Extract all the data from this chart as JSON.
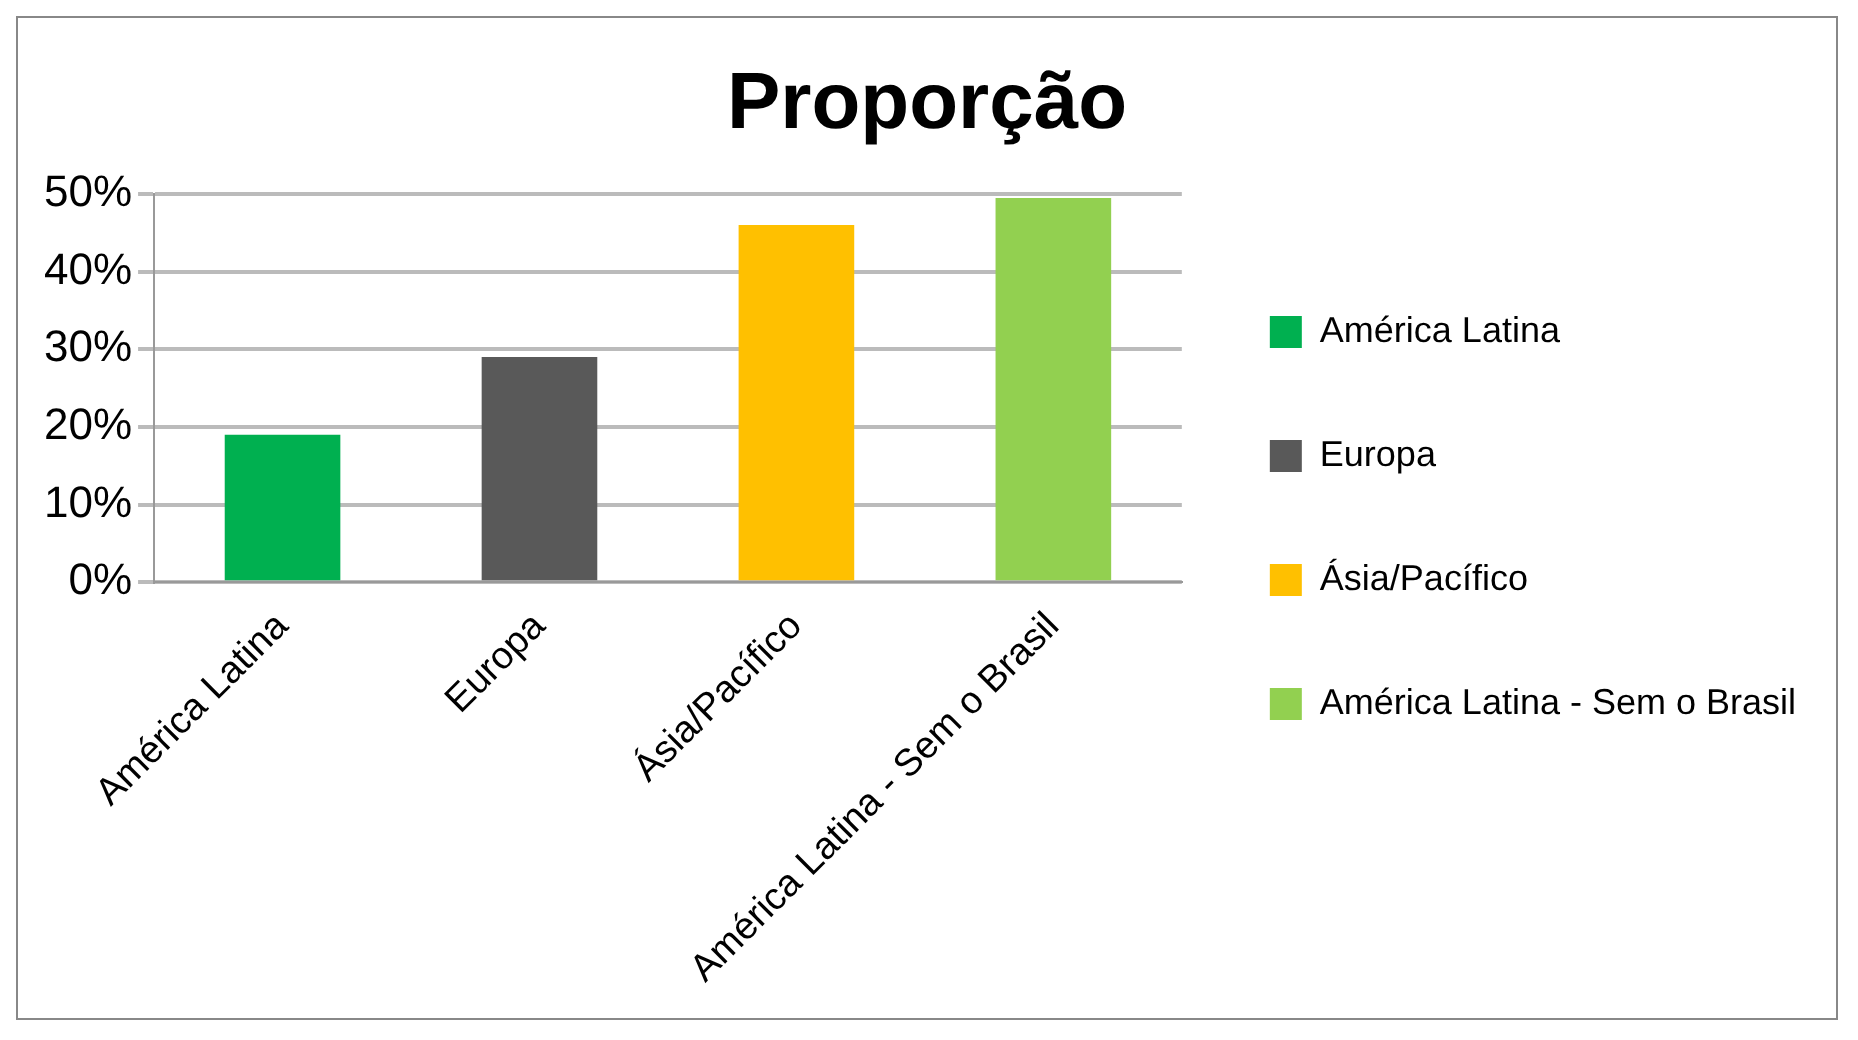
{
  "chart_data": {
    "type": "bar",
    "title": "Proporção",
    "categories": [
      "América Latina",
      "Europa",
      "Ásia/Pacífico",
      "América Latina - Sem o Brasil"
    ],
    "series": [
      {
        "name": "América Latina",
        "color": "#00b050",
        "values": [
          19,
          null,
          null,
          null
        ]
      },
      {
        "name": "Europa",
        "color": "#595959",
        "values": [
          null,
          29,
          null,
          null
        ]
      },
      {
        "name": "Ásia/Pacífico",
        "color": "#ffc000",
        "values": [
          null,
          null,
          46,
          null
        ]
      },
      {
        "name": "América Latina - Sem o Brasil",
        "color": "#92d050",
        "values": [
          null,
          null,
          null,
          49.5
        ]
      }
    ],
    "ylim": [
      0,
      50
    ],
    "yticks": [
      {
        "value": 0,
        "label": "0%"
      },
      {
        "value": 10,
        "label": "10%"
      },
      {
        "value": 20,
        "label": "20%"
      },
      {
        "value": 30,
        "label": "30%"
      },
      {
        "value": 40,
        "label": "40%"
      },
      {
        "value": 50,
        "label": "50%"
      }
    ],
    "grid": "y",
    "legend": "right"
  }
}
